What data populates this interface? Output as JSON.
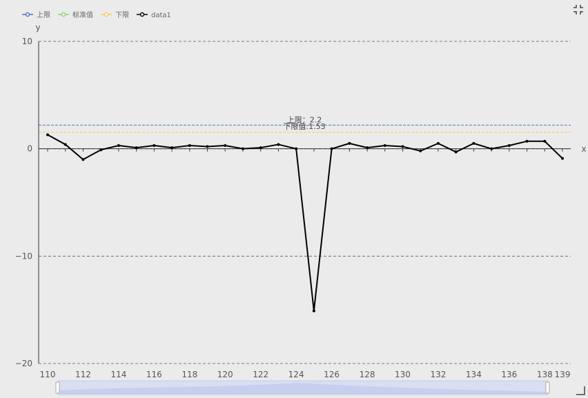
{
  "chart_data": {
    "type": "line",
    "ylabel": "y",
    "xlabel": "x",
    "xlim": [
      110,
      139
    ],
    "ylim": [
      -20,
      10
    ],
    "y_ticks": [
      10,
      0,
      -10,
      -20
    ],
    "x_ticks": [
      110,
      112,
      114,
      116,
      118,
      120,
      122,
      124,
      126,
      128,
      130,
      132,
      134,
      136,
      138,
      139
    ],
    "grid": "horizontal dashed",
    "legend_position": "top-left",
    "legend": [
      {
        "name": "上限",
        "color": "#5470c6"
      },
      {
        "name": "标准值",
        "color": "#91cc75"
      },
      {
        "name": "下限",
        "color": "#fac858"
      },
      {
        "name": "data1",
        "color": "#000000"
      }
    ],
    "reference_lines": [
      {
        "name": "上限",
        "value": 2.2,
        "label": "上限：2.2",
        "color": "#5470c6"
      },
      {
        "name": "下限",
        "value": 1.53,
        "label": "下限值:1.53",
        "color": "#fac858"
      }
    ],
    "series": [
      {
        "name": "data1",
        "color": "#000000",
        "x": [
          110,
          111,
          112,
          113,
          114,
          115,
          116,
          117,
          118,
          119,
          120,
          121,
          122,
          123,
          124,
          125,
          126,
          127,
          128,
          129,
          130,
          131,
          132,
          133,
          134,
          135,
          136,
          137,
          138,
          139
        ],
        "y": [
          1.3,
          0.4,
          -1.0,
          -0.1,
          0.3,
          0.1,
          0.3,
          0.1,
          0.3,
          0.2,
          0.3,
          0.0,
          0.1,
          0.4,
          0.0,
          -15.1,
          0.0,
          0.5,
          0.1,
          0.3,
          0.2,
          -0.2,
          0.5,
          -0.3,
          0.5,
          0.0,
          0.3,
          0.7,
          0.7,
          -0.9
        ]
      }
    ]
  }
}
